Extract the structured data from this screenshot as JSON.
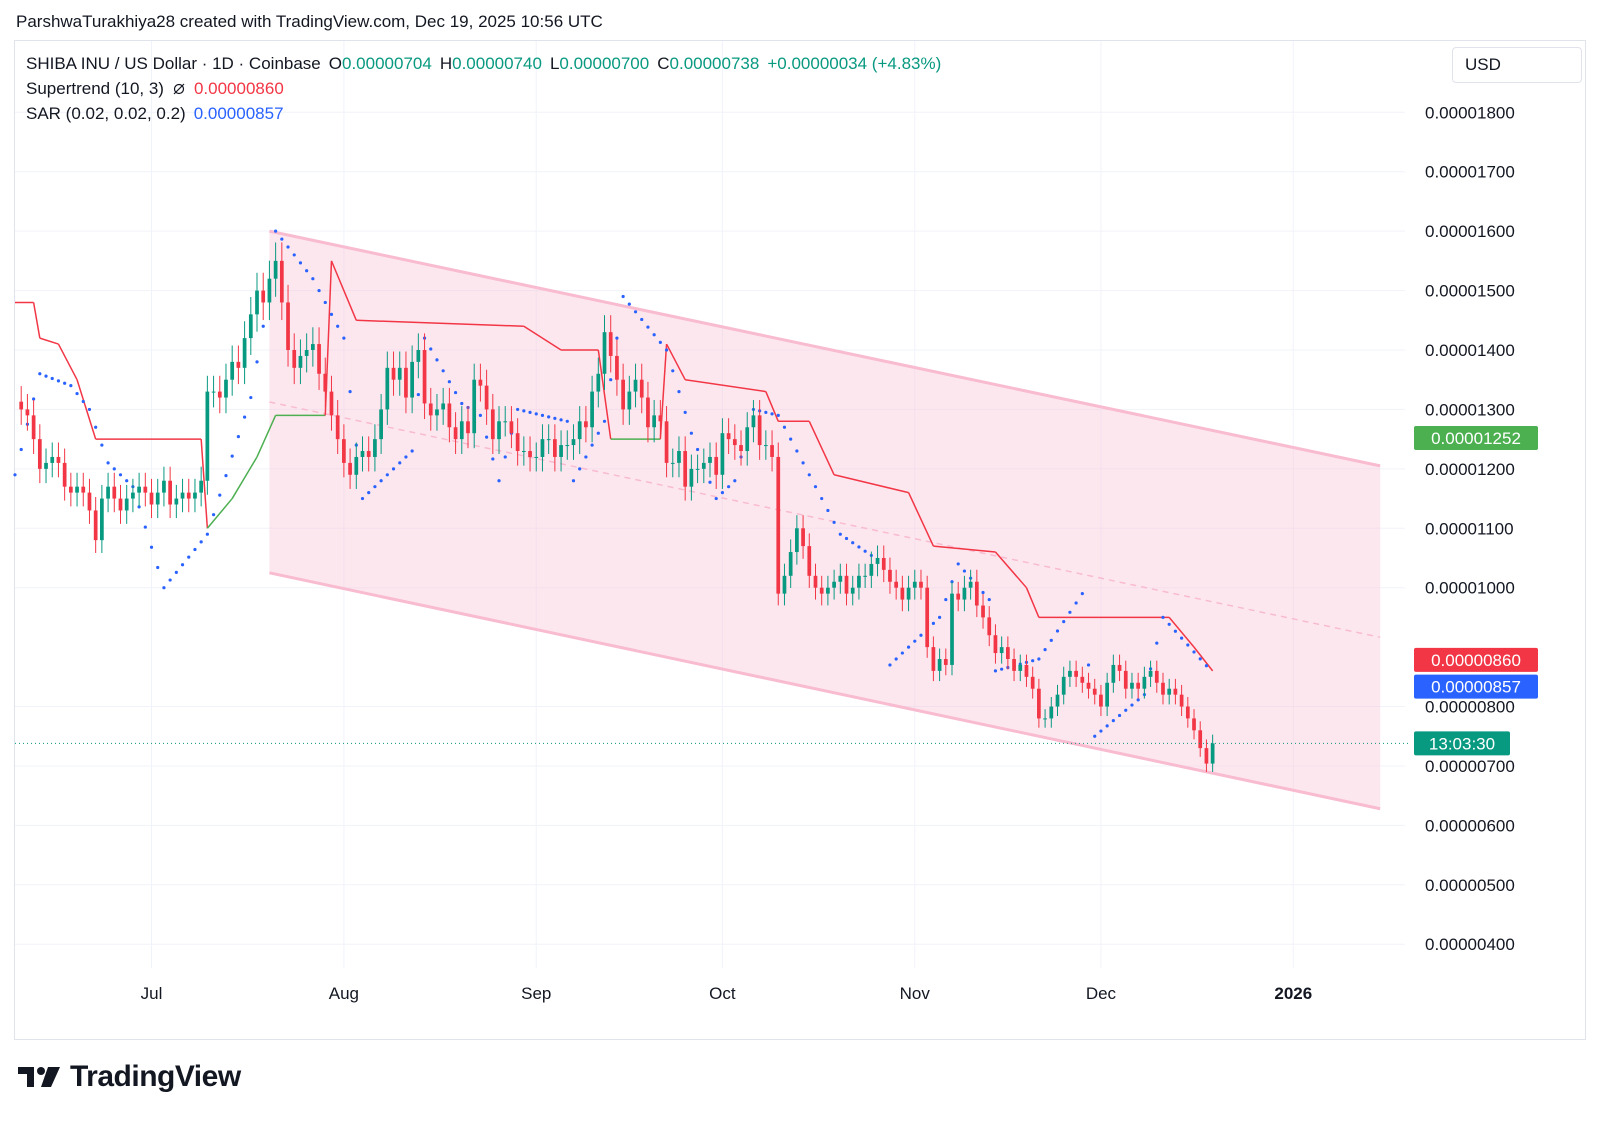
{
  "credit": "ParshwaTurakhiya28 created with TradingView.com, Dec 19, 2025 10:56 UTC",
  "legend": {
    "symbol": "SHIBA INU / US Dollar · 1D · Coinbase",
    "o_label": "O",
    "o_value": "0.00000704",
    "h_label": "H",
    "h_value": "0.00000740",
    "l_label": "L",
    "l_value": "0.00000700",
    "c_label": "C",
    "c_value": "0.00000738",
    "change": "+0.00000034 (+4.83%)",
    "supertrend_label": "Supertrend (10, 3)",
    "supertrend_icon": "hidden-eye-icon",
    "supertrend_value": "0.00000860",
    "sar_label": "SAR (0.02, 0.02, 0.2)",
    "sar_value": "0.00000857"
  },
  "currency": "USD",
  "brand": "TradingView",
  "colors": {
    "up": "#089981",
    "down": "#f23645",
    "supertrend_down": "#f23645",
    "supertrend_up": "#4caf50",
    "sar": "#2962ff",
    "channel": "#f8bbd0",
    "badge_green": "#4caf50",
    "badge_red": "#f23645",
    "badge_blue": "#2962ff",
    "badge_teal": "#089981"
  },
  "chart_data": {
    "type": "candlestick",
    "symbol": "SHIBUSD",
    "timeframe": "1D",
    "x_ticks": [
      "Jul",
      "Aug",
      "Sep",
      "Oct",
      "Nov",
      "Dec",
      "2026"
    ],
    "y_ticks": [
      "0.00001800",
      "0.00001700",
      "0.00001600",
      "0.00001500",
      "0.00001400",
      "0.00001300",
      "0.00001200",
      "0.00001100",
      "0.00001000",
      "0.00000800",
      "0.00000700",
      "0.00000600",
      "0.00000500",
      "0.00000400"
    ],
    "y_range": [
      3.6e-06,
      1.92e-05
    ],
    "x_range": [
      "2025-06-09",
      "2026-01-19"
    ],
    "price_labels": {
      "channel_top": "0.00001252",
      "supertrend": "0.00000860",
      "sar": "0.00000857",
      "countdown": "13:03:30"
    },
    "current_price": 7.38e-06,
    "closes": [
      [
        "2025-06-10",
        1.3
      ],
      [
        "2025-06-11",
        1.29
      ],
      [
        "2025-06-12",
        1.25
      ],
      [
        "2025-06-13",
        1.2
      ],
      [
        "2025-06-14",
        1.21
      ],
      [
        "2025-06-15",
        1.22
      ],
      [
        "2025-06-16",
        1.21
      ],
      [
        "2025-06-17",
        1.17
      ],
      [
        "2025-06-18",
        1.16
      ],
      [
        "2025-06-19",
        1.17
      ],
      [
        "2025-06-20",
        1.16
      ],
      [
        "2025-06-21",
        1.13
      ],
      [
        "2025-06-22",
        1.08
      ],
      [
        "2025-06-23",
        1.15
      ],
      [
        "2025-06-24",
        1.17
      ],
      [
        "2025-06-25",
        1.15
      ],
      [
        "2025-06-26",
        1.13
      ],
      [
        "2025-06-27",
        1.15
      ],
      [
        "2025-06-28",
        1.16
      ],
      [
        "2025-06-29",
        1.17
      ],
      [
        "2025-06-30",
        1.16
      ],
      [
        "2025-07-01",
        1.14
      ],
      [
        "2025-07-02",
        1.16
      ],
      [
        "2025-07-03",
        1.18
      ],
      [
        "2025-07-04",
        1.14
      ],
      [
        "2025-07-05",
        1.15
      ],
      [
        "2025-07-06",
        1.16
      ],
      [
        "2025-07-07",
        1.15
      ],
      [
        "2025-07-08",
        1.16
      ],
      [
        "2025-07-09",
        1.18
      ],
      [
        "2025-07-10",
        1.33
      ],
      [
        "2025-07-11",
        1.33
      ],
      [
        "2025-07-12",
        1.32
      ],
      [
        "2025-07-13",
        1.35
      ],
      [
        "2025-07-14",
        1.38
      ],
      [
        "2025-07-15",
        1.37
      ],
      [
        "2025-07-16",
        1.42
      ],
      [
        "2025-07-17",
        1.46
      ],
      [
        "2025-07-18",
        1.5
      ],
      [
        "2025-07-19",
        1.48
      ],
      [
        "2025-07-20",
        1.52
      ],
      [
        "2025-07-21",
        1.55
      ],
      [
        "2025-07-22",
        1.48
      ],
      [
        "2025-07-23",
        1.4
      ],
      [
        "2025-07-24",
        1.37
      ],
      [
        "2025-07-25",
        1.39
      ],
      [
        "2025-07-26",
        1.4
      ],
      [
        "2025-07-27",
        1.41
      ],
      [
        "2025-07-28",
        1.36
      ],
      [
        "2025-07-29",
        1.33
      ],
      [
        "2025-07-30",
        1.29
      ],
      [
        "2025-07-31",
        1.25
      ],
      [
        "2025-08-01",
        1.21
      ],
      [
        "2025-08-02",
        1.19
      ],
      [
        "2025-08-03",
        1.22
      ],
      [
        "2025-08-04",
        1.23
      ],
      [
        "2025-08-05",
        1.22
      ],
      [
        "2025-08-06",
        1.25
      ],
      [
        "2025-08-07",
        1.3
      ],
      [
        "2025-08-08",
        1.37
      ],
      [
        "2025-08-09",
        1.35
      ],
      [
        "2025-08-10",
        1.37
      ],
      [
        "2025-08-11",
        1.32
      ],
      [
        "2025-08-12",
        1.38
      ],
      [
        "2025-08-13",
        1.4
      ],
      [
        "2025-08-14",
        1.31
      ],
      [
        "2025-08-15",
        1.29
      ],
      [
        "2025-08-16",
        1.3
      ],
      [
        "2025-08-17",
        1.31
      ],
      [
        "2025-08-18",
        1.27
      ],
      [
        "2025-08-19",
        1.25
      ],
      [
        "2025-08-20",
        1.28
      ],
      [
        "2025-08-21",
        1.26
      ],
      [
        "2025-08-22",
        1.35
      ],
      [
        "2025-08-23",
        1.34
      ],
      [
        "2025-08-24",
        1.3
      ],
      [
        "2025-08-25",
        1.25
      ],
      [
        "2025-08-26",
        1.28
      ],
      [
        "2025-08-27",
        1.28
      ],
      [
        "2025-08-28",
        1.26
      ],
      [
        "2025-08-29",
        1.23
      ],
      [
        "2025-08-30",
        1.23
      ],
      [
        "2025-08-31",
        1.22
      ],
      [
        "2025-09-01",
        1.22
      ],
      [
        "2025-09-02",
        1.25
      ],
      [
        "2025-09-03",
        1.25
      ],
      [
        "2025-09-04",
        1.22
      ],
      [
        "2025-09-05",
        1.24
      ],
      [
        "2025-09-06",
        1.24
      ],
      [
        "2025-09-07",
        1.25
      ],
      [
        "2025-09-08",
        1.28
      ],
      [
        "2025-09-09",
        1.27
      ],
      [
        "2025-09-10",
        1.33
      ],
      [
        "2025-09-11",
        1.36
      ],
      [
        "2025-09-12",
        1.43
      ],
      [
        "2025-09-13",
        1.39
      ],
      [
        "2025-09-14",
        1.35
      ],
      [
        "2025-09-15",
        1.3
      ],
      [
        "2025-09-16",
        1.33
      ],
      [
        "2025-09-17",
        1.35
      ],
      [
        "2025-09-18",
        1.32
      ],
      [
        "2025-09-19",
        1.27
      ],
      [
        "2025-09-20",
        1.29
      ],
      [
        "2025-09-21",
        1.28
      ],
      [
        "2025-09-22",
        1.21
      ],
      [
        "2025-09-23",
        1.21
      ],
      [
        "2025-09-24",
        1.23
      ],
      [
        "2025-09-25",
        1.17
      ],
      [
        "2025-09-26",
        1.2
      ],
      [
        "2025-09-27",
        1.2
      ],
      [
        "2025-09-28",
        1.21
      ],
      [
        "2025-09-29",
        1.22
      ],
      [
        "2025-09-30",
        1.19
      ],
      [
        "2025-10-01",
        1.26
      ],
      [
        "2025-10-02",
        1.25
      ],
      [
        "2025-10-03",
        1.24
      ],
      [
        "2025-10-04",
        1.23
      ],
      [
        "2025-10-05",
        1.27
      ],
      [
        "2025-10-06",
        1.29
      ],
      [
        "2025-10-07",
        1.24
      ],
      [
        "2025-10-08",
        1.24
      ],
      [
        "2025-10-09",
        1.22
      ],
      [
        "2025-10-10",
        0.99
      ],
      [
        "2025-10-11",
        1.02
      ],
      [
        "2025-10-12",
        1.06
      ],
      [
        "2025-10-13",
        1.1
      ],
      [
        "2025-10-14",
        1.07
      ],
      [
        "2025-10-15",
        1.02
      ],
      [
        "2025-10-16",
        1.0
      ],
      [
        "2025-10-17",
        0.99
      ],
      [
        "2025-10-18",
        1.0
      ],
      [
        "2025-10-19",
        1.01
      ],
      [
        "2025-10-20",
        1.02
      ],
      [
        "2025-10-21",
        0.99
      ],
      [
        "2025-10-22",
        1.0
      ],
      [
        "2025-10-23",
        1.02
      ],
      [
        "2025-10-24",
        1.02
      ],
      [
        "2025-10-25",
        1.04
      ],
      [
        "2025-10-26",
        1.05
      ],
      [
        "2025-10-27",
        1.03
      ],
      [
        "2025-10-28",
        1.01
      ],
      [
        "2025-10-29",
        1.0
      ],
      [
        "2025-10-30",
        0.98
      ],
      [
        "2025-10-31",
        1.0
      ],
      [
        "2025-11-01",
        1.01
      ],
      [
        "2025-11-02",
        1.0
      ],
      [
        "2025-11-03",
        0.9
      ],
      [
        "2025-11-04",
        0.86
      ],
      [
        "2025-11-05",
        0.88
      ],
      [
        "2025-11-06",
        0.87
      ],
      [
        "2025-11-07",
        0.99
      ],
      [
        "2025-11-08",
        0.98
      ],
      [
        "2025-11-09",
        1.0
      ],
      [
        "2025-11-10",
        1.01
      ],
      [
        "2025-11-11",
        0.97
      ],
      [
        "2025-11-12",
        0.95
      ],
      [
        "2025-11-13",
        0.92
      ],
      [
        "2025-11-14",
        0.89
      ],
      [
        "2025-11-15",
        0.9
      ],
      [
        "2025-11-16",
        0.88
      ],
      [
        "2025-11-17",
        0.86
      ],
      [
        "2025-11-18",
        0.87
      ],
      [
        "2025-11-19",
        0.85
      ],
      [
        "2025-11-20",
        0.83
      ],
      [
        "2025-11-21",
        0.78
      ],
      [
        "2025-11-22",
        0.78
      ],
      [
        "2025-11-23",
        0.8
      ],
      [
        "2025-11-24",
        0.82
      ],
      [
        "2025-11-25",
        0.85
      ],
      [
        "2025-11-26",
        0.86
      ],
      [
        "2025-11-27",
        0.85
      ],
      [
        "2025-11-28",
        0.84
      ],
      [
        "2025-11-29",
        0.83
      ],
      [
        "2025-11-30",
        0.82
      ],
      [
        "2025-12-01",
        0.8
      ],
      [
        "2025-12-02",
        0.84
      ],
      [
        "2025-12-03",
        0.87
      ],
      [
        "2025-12-04",
        0.86
      ],
      [
        "2025-12-05",
        0.83
      ],
      [
        "2025-12-06",
        0.84
      ],
      [
        "2025-12-07",
        0.83
      ],
      [
        "2025-12-08",
        0.85
      ],
      [
        "2025-12-09",
        0.86
      ],
      [
        "2025-12-10",
        0.84
      ],
      [
        "2025-12-11",
        0.82
      ],
      [
        "2025-12-12",
        0.83
      ],
      [
        "2025-12-13",
        0.82
      ],
      [
        "2025-12-14",
        0.8
      ],
      [
        "2025-12-15",
        0.78
      ],
      [
        "2025-12-16",
        0.76
      ],
      [
        "2025-12-17",
        0.73
      ],
      [
        "2025-12-18",
        0.704
      ],
      [
        "2025-12-19",
        0.738
      ]
    ],
    "close_scale": 1e-05,
    "channel": {
      "upper": [
        [
          "2025-07-20",
          1.6
        ],
        [
          "2026-01-15",
          1.205
        ]
      ],
      "lower": [
        [
          "2025-07-20",
          1.025
        ],
        [
          "2026-01-15",
          0.628
        ]
      ],
      "middle_dashed": [
        [
          "2025-07-20",
          1.3125
        ],
        [
          "2026-01-15",
          0.9165
        ]
      ]
    },
    "supertrend": [
      [
        "2025-06-09",
        1.48
      ],
      [
        "2025-06-12",
        1.48
      ],
      [
        "2025-06-13",
        1.42
      ],
      [
        "2025-06-16",
        1.41
      ],
      [
        "2025-06-19",
        1.35
      ],
      [
        "2025-06-22",
        1.25
      ],
      [
        "2025-07-09",
        1.25
      ],
      [
        "2025-07-10",
        1.1
      ],
      [
        "2025-07-14",
        1.15
      ],
      [
        "2025-07-18",
        1.22
      ],
      [
        "2025-07-21",
        1.29
      ],
      [
        "2025-07-29",
        1.29
      ],
      [
        "2025-07-30",
        1.55
      ],
      [
        "2025-08-03",
        1.45
      ],
      [
        "2025-08-30",
        1.44
      ],
      [
        "2025-09-05",
        1.4
      ],
      [
        "2025-09-11",
        1.4
      ],
      [
        "2025-09-13",
        1.25
      ],
      [
        "2025-09-21",
        1.25
      ],
      [
        "2025-09-22",
        1.41
      ],
      [
        "2025-09-25",
        1.35
      ],
      [
        "2025-10-08",
        1.33
      ],
      [
        "2025-10-10",
        1.28
      ],
      [
        "2025-10-15",
        1.28
      ],
      [
        "2025-10-19",
        1.19
      ],
      [
        "2025-10-31",
        1.16
      ],
      [
        "2025-11-04",
        1.07
      ],
      [
        "2025-11-14",
        1.06
      ],
      [
        "2025-11-19",
        1.0
      ],
      [
        "2025-11-21",
        0.95
      ],
      [
        "2025-12-12",
        0.95
      ],
      [
        "2025-12-16",
        0.9
      ],
      [
        "2025-12-19",
        0.86
      ]
    ],
    "sar": [
      [
        "2025-06-09",
        1.19
      ],
      [
        "2025-06-13",
        1.36
      ],
      [
        "2025-06-18",
        1.34
      ],
      [
        "2025-06-21",
        1.3
      ],
      [
        "2025-06-24",
        1.21
      ],
      [
        "2025-06-28",
        1.17
      ],
      [
        "2025-07-03",
        1.0
      ],
      [
        "2025-07-10",
        1.09
      ],
      [
        "2025-07-17",
        1.32
      ],
      [
        "2025-07-20",
        1.5
      ],
      [
        "2025-07-21",
        1.6
      ],
      [
        "2025-07-27",
        1.52
      ],
      [
        "2025-08-01",
        1.42
      ],
      [
        "2025-08-04",
        1.15
      ],
      [
        "2025-08-12",
        1.23
      ],
      [
        "2025-08-14",
        1.42
      ],
      [
        "2025-08-20",
        1.31
      ],
      [
        "2025-08-23",
        1.29
      ],
      [
        "2025-08-26",
        1.18
      ],
      [
        "2025-08-29",
        1.3
      ],
      [
        "2025-09-06",
        1.28
      ],
      [
        "2025-09-07",
        1.18
      ],
      [
        "2025-09-12",
        1.28
      ],
      [
        "2025-09-15",
        1.49
      ],
      [
        "2025-09-22",
        1.4
      ],
      [
        "2025-09-26",
        1.26
      ],
      [
        "2025-09-30",
        1.15
      ],
      [
        "2025-10-03",
        1.18
      ],
      [
        "2025-10-06",
        1.3
      ],
      [
        "2025-10-10",
        1.29
      ],
      [
        "2025-10-20",
        1.09
      ],
      [
        "2025-10-27",
        1.04
      ],
      [
        "2025-10-28",
        0.87
      ],
      [
        "2025-11-05",
        0.95
      ],
      [
        "2025-11-08",
        1.04
      ],
      [
        "2025-11-13",
        0.98
      ],
      [
        "2025-11-14",
        0.86
      ],
      [
        "2025-11-21",
        0.88
      ],
      [
        "2025-11-28",
        0.99
      ],
      [
        "2025-11-30",
        0.75
      ],
      [
        "2025-12-08",
        0.82
      ],
      [
        "2025-12-11",
        0.95
      ],
      [
        "2025-12-19",
        0.857
      ]
    ]
  }
}
